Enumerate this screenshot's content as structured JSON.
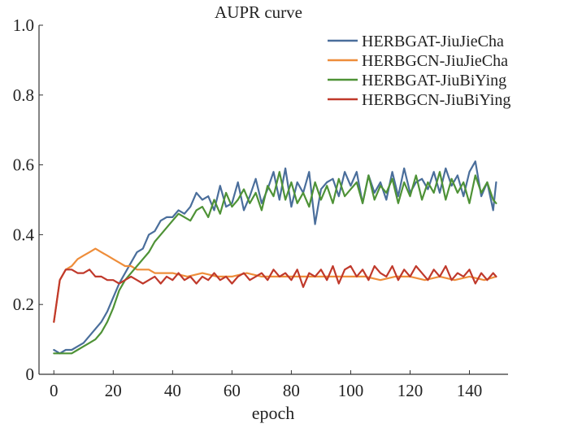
{
  "chart_data": {
    "type": "line",
    "title": "AUPR curve",
    "xlabel": "epoch",
    "ylabel": "",
    "xlim": [
      -5,
      153
    ],
    "ylim": [
      0,
      1.0
    ],
    "xticks": [
      0,
      20,
      40,
      60,
      80,
      100,
      120,
      140
    ],
    "yticks": [
      0,
      0.2,
      0.4,
      0.6,
      0.8,
      1.0
    ],
    "xtick_labels": [
      "0",
      "20",
      "40",
      "60",
      "80",
      "100",
      "120",
      "140"
    ],
    "ytick_labels": [
      "0",
      "0.2",
      "0.4",
      "0.6",
      "0.8",
      "1.0"
    ],
    "grid": false,
    "legend_position": "top-right",
    "series": [
      {
        "name": "HERBGAT-JiuJieCha",
        "color": "#4a6e9b",
        "x": [
          0,
          2,
          4,
          6,
          8,
          10,
          12,
          14,
          16,
          18,
          20,
          22,
          24,
          26,
          28,
          30,
          32,
          34,
          36,
          38,
          40,
          42,
          44,
          46,
          48,
          50,
          52,
          54,
          56,
          58,
          60,
          62,
          64,
          66,
          68,
          70,
          72,
          74,
          76,
          78,
          80,
          82,
          84,
          86,
          88,
          90,
          92,
          94,
          96,
          98,
          100,
          102,
          104,
          106,
          108,
          110,
          112,
          114,
          116,
          118,
          120,
          122,
          124,
          126,
          128,
          130,
          132,
          134,
          136,
          138,
          140,
          142,
          144,
          146,
          148,
          149
        ],
        "y": [
          0.07,
          0.06,
          0.07,
          0.07,
          0.08,
          0.09,
          0.11,
          0.13,
          0.15,
          0.18,
          0.22,
          0.26,
          0.29,
          0.32,
          0.35,
          0.36,
          0.4,
          0.41,
          0.44,
          0.45,
          0.45,
          0.47,
          0.46,
          0.48,
          0.52,
          0.5,
          0.51,
          0.47,
          0.54,
          0.48,
          0.49,
          0.55,
          0.47,
          0.51,
          0.56,
          0.49,
          0.53,
          0.58,
          0.5,
          0.59,
          0.48,
          0.55,
          0.52,
          0.58,
          0.43,
          0.53,
          0.55,
          0.56,
          0.51,
          0.58,
          0.54,
          0.58,
          0.49,
          0.57,
          0.52,
          0.55,
          0.5,
          0.58,
          0.51,
          0.59,
          0.52,
          0.55,
          0.56,
          0.53,
          0.58,
          0.52,
          0.59,
          0.54,
          0.57,
          0.51,
          0.58,
          0.61,
          0.51,
          0.55,
          0.47,
          0.55
        ]
      },
      {
        "name": "HERBGCN-JiuJieCha",
        "color": "#ee8d3a",
        "x": [
          0,
          2,
          4,
          6,
          8,
          10,
          12,
          14,
          16,
          18,
          20,
          22,
          24,
          26,
          28,
          30,
          32,
          34,
          36,
          38,
          40,
          45,
          50,
          55,
          60,
          65,
          70,
          75,
          80,
          85,
          90,
          95,
          100,
          105,
          110,
          115,
          120,
          125,
          130,
          135,
          140,
          145,
          149
        ],
        "y": [
          0.15,
          0.27,
          0.3,
          0.31,
          0.33,
          0.34,
          0.35,
          0.36,
          0.35,
          0.34,
          0.33,
          0.32,
          0.31,
          0.31,
          0.3,
          0.3,
          0.3,
          0.29,
          0.29,
          0.29,
          0.29,
          0.28,
          0.29,
          0.28,
          0.28,
          0.29,
          0.28,
          0.28,
          0.28,
          0.28,
          0.28,
          0.28,
          0.28,
          0.28,
          0.27,
          0.28,
          0.28,
          0.27,
          0.28,
          0.27,
          0.28,
          0.27,
          0.28
        ]
      },
      {
        "name": "HERBGAT-JiuBiYing",
        "color": "#4e9236",
        "x": [
          0,
          2,
          4,
          6,
          8,
          10,
          12,
          14,
          16,
          18,
          20,
          22,
          24,
          26,
          28,
          30,
          32,
          34,
          36,
          38,
          40,
          42,
          44,
          46,
          48,
          50,
          52,
          54,
          56,
          58,
          60,
          62,
          64,
          66,
          68,
          70,
          72,
          74,
          76,
          78,
          80,
          82,
          84,
          86,
          88,
          90,
          92,
          94,
          96,
          98,
          100,
          102,
          104,
          106,
          108,
          110,
          112,
          114,
          116,
          118,
          120,
          122,
          124,
          126,
          128,
          130,
          132,
          134,
          136,
          138,
          140,
          142,
          144,
          146,
          148,
          149
        ],
        "y": [
          0.06,
          0.06,
          0.06,
          0.06,
          0.07,
          0.08,
          0.09,
          0.1,
          0.12,
          0.15,
          0.19,
          0.24,
          0.27,
          0.29,
          0.31,
          0.33,
          0.35,
          0.38,
          0.4,
          0.42,
          0.44,
          0.46,
          0.45,
          0.44,
          0.47,
          0.48,
          0.45,
          0.5,
          0.46,
          0.52,
          0.48,
          0.5,
          0.53,
          0.49,
          0.52,
          0.47,
          0.54,
          0.51,
          0.58,
          0.5,
          0.55,
          0.49,
          0.52,
          0.48,
          0.55,
          0.5,
          0.54,
          0.49,
          0.56,
          0.51,
          0.53,
          0.55,
          0.49,
          0.57,
          0.5,
          0.54,
          0.52,
          0.56,
          0.49,
          0.55,
          0.51,
          0.57,
          0.5,
          0.55,
          0.52,
          0.58,
          0.5,
          0.56,
          0.52,
          0.55,
          0.49,
          0.57,
          0.52,
          0.55,
          0.5,
          0.49
        ]
      },
      {
        "name": "HERBGCN-JiuBiYing",
        "color": "#c0392b",
        "x": [
          0,
          2,
          4,
          6,
          8,
          10,
          12,
          14,
          16,
          18,
          20,
          22,
          24,
          26,
          28,
          30,
          32,
          34,
          36,
          38,
          40,
          42,
          44,
          46,
          48,
          50,
          52,
          54,
          56,
          58,
          60,
          62,
          64,
          66,
          68,
          70,
          72,
          74,
          76,
          78,
          80,
          82,
          84,
          86,
          88,
          90,
          92,
          94,
          96,
          98,
          100,
          102,
          104,
          106,
          108,
          110,
          112,
          114,
          116,
          118,
          120,
          122,
          124,
          126,
          128,
          130,
          132,
          134,
          136,
          138,
          140,
          142,
          144,
          146,
          148,
          149
        ],
        "y": [
          0.15,
          0.27,
          0.3,
          0.3,
          0.29,
          0.29,
          0.3,
          0.28,
          0.28,
          0.27,
          0.27,
          0.26,
          0.27,
          0.28,
          0.27,
          0.26,
          0.27,
          0.28,
          0.26,
          0.28,
          0.27,
          0.29,
          0.27,
          0.28,
          0.26,
          0.28,
          0.27,
          0.29,
          0.27,
          0.28,
          0.26,
          0.28,
          0.29,
          0.27,
          0.28,
          0.29,
          0.27,
          0.3,
          0.28,
          0.29,
          0.27,
          0.3,
          0.25,
          0.29,
          0.28,
          0.3,
          0.27,
          0.31,
          0.26,
          0.3,
          0.31,
          0.28,
          0.3,
          0.27,
          0.31,
          0.29,
          0.28,
          0.31,
          0.27,
          0.3,
          0.28,
          0.31,
          0.29,
          0.27,
          0.3,
          0.28,
          0.31,
          0.27,
          0.29,
          0.28,
          0.3,
          0.26,
          0.29,
          0.27,
          0.29,
          0.28
        ]
      }
    ]
  }
}
